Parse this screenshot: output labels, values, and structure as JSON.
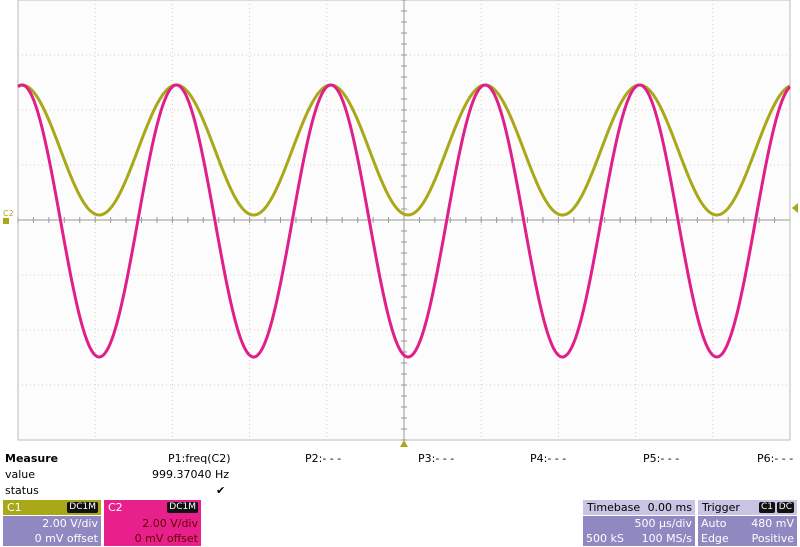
{
  "screen": {
    "trace_label": "C2",
    "measure": {
      "title": "Measure",
      "row_labels": [
        "value",
        "status"
      ]
    },
    "params": [
      {
        "name": "P1:freq(C2)",
        "value": "999.37040 Hz",
        "status": "✔"
      },
      {
        "name": "P2:- - -"
      },
      {
        "name": "P3:- - -"
      },
      {
        "name": "P4:- - -"
      },
      {
        "name": "P5:- - -"
      },
      {
        "name": "P6:- - -"
      }
    ],
    "channels": [
      {
        "name": "C1",
        "coupling": "DC1M",
        "scale": "2.00 V/div",
        "offset": "0 mV offset"
      },
      {
        "name": "C2",
        "coupling": "DC1M",
        "scale": "2.00 V/div",
        "offset": "0 mV offset"
      }
    ],
    "timebase": {
      "title": "Timebase",
      "delay": "0.00 ms",
      "scale": "500 µs/div",
      "samples": "500 kS",
      "rate": "100 MS/s"
    },
    "trigger": {
      "title": "Trigger",
      "source": "C1",
      "coupling": "DC",
      "mode": "Auto",
      "level": "480 mV",
      "type": "Edge",
      "slope": "Positive"
    }
  }
}
